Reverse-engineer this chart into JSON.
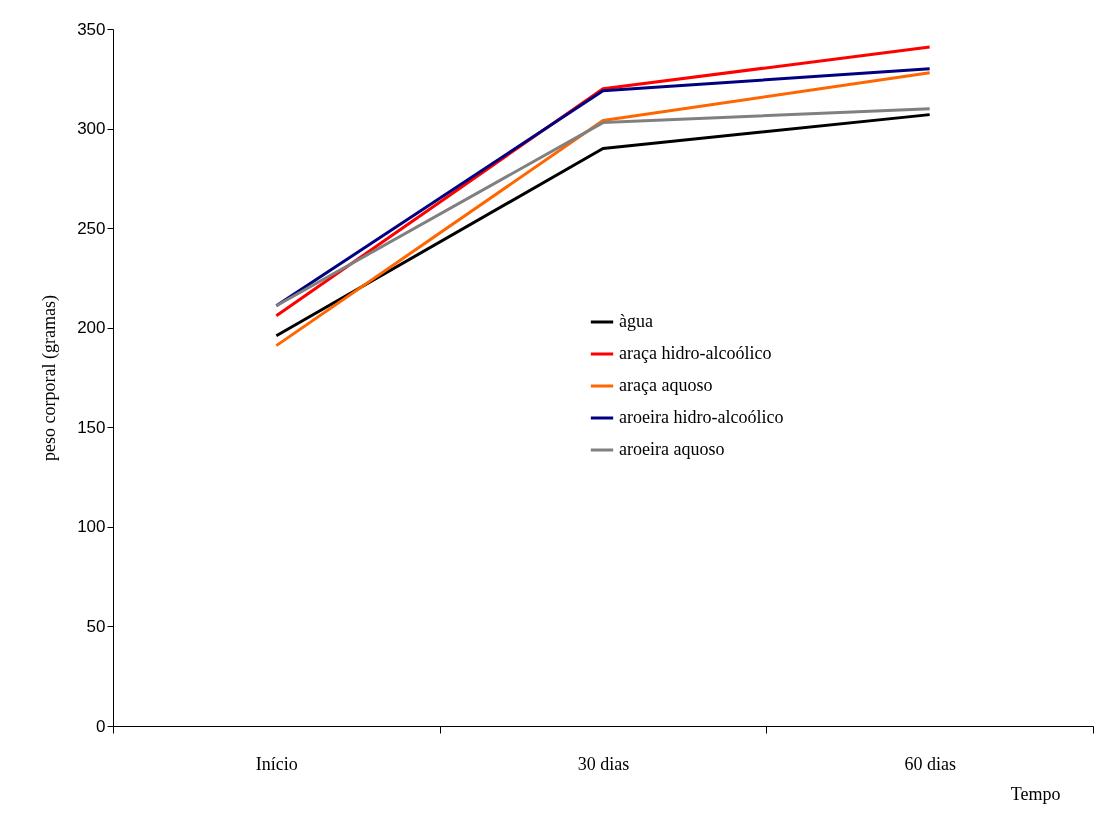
{
  "chart_data": {
    "type": "line",
    "xlabel": "Tempo",
    "ylabel": "peso corporal (gramas)",
    "categories": [
      "Início",
      "30 dias",
      "60 dias"
    ],
    "series": [
      {
        "name": "àgua",
        "color": "#000000",
        "values": [
          196,
          290,
          307
        ]
      },
      {
        "name": "araça hidro-alcoólico",
        "color": "#ff0000",
        "values": [
          206,
          320,
          341
        ]
      },
      {
        "name": "araça aquoso",
        "color": "#ff6600",
        "values": [
          191,
          304,
          328
        ]
      },
      {
        "name": "aroeira hidro-alcoólico",
        "color": "#000080",
        "values": [
          211,
          319,
          330
        ]
      },
      {
        "name": "aroeira aquoso",
        "color": "#808080",
        "values": [
          211,
          303,
          310
        ]
      }
    ],
    "ylim": [
      0,
      350
    ],
    "yticks": [
      0,
      50,
      100,
      150,
      200,
      250,
      300,
      350
    ],
    "grid": false,
    "legend": "center",
    "marker": "none",
    "line_style": "solid"
  }
}
